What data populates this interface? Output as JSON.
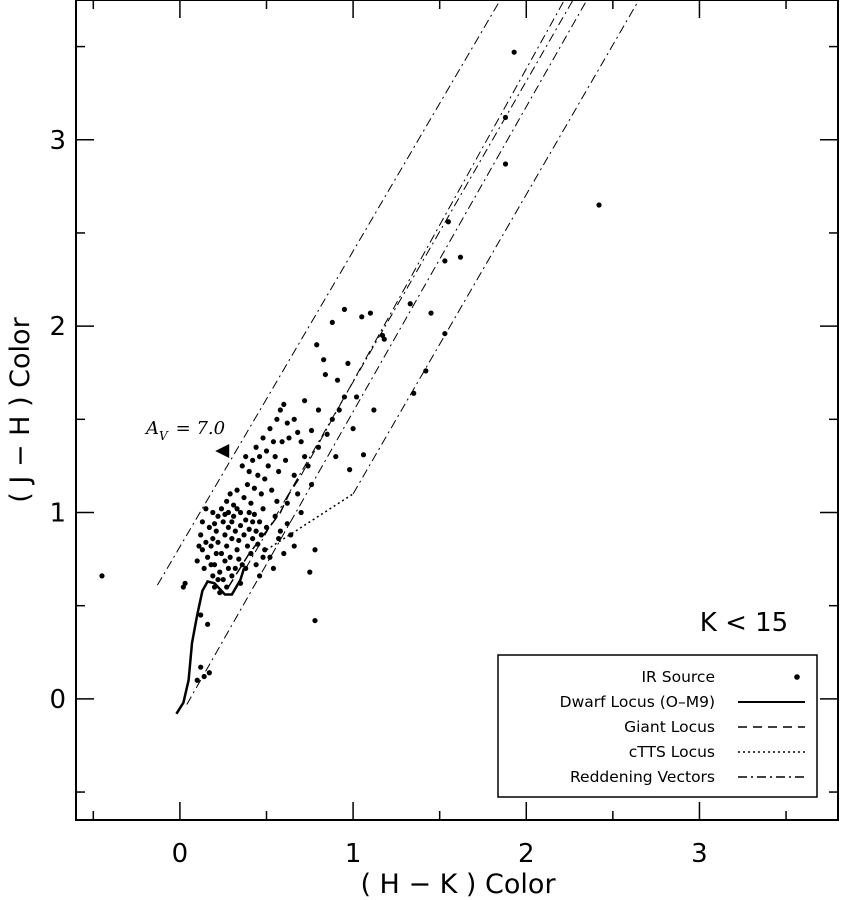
{
  "chart_data": {
    "type": "scatter",
    "xlabel": "( H − K ) Color",
    "ylabel": "( J − H ) Color",
    "xlim": [
      -0.6,
      3.8
    ],
    "ylim": [
      -0.65,
      3.75
    ],
    "xticks": [
      0,
      1,
      2,
      3
    ],
    "yticks": [
      0,
      1,
      2,
      3
    ],
    "grid": false,
    "legend_position": "bottom-right",
    "annotations": {
      "cut": "K < 15",
      "av_label": "A",
      "av_sub": "V",
      "av_value": "= 7.0"
    },
    "legend": [
      {
        "label": "IR Source",
        "style": "dot"
      },
      {
        "label": "Dwarf Locus (O–M9)",
        "style": "solid"
      },
      {
        "label": "Giant Locus",
        "style": "dashed"
      },
      {
        "label": "cTTS Locus",
        "style": "dotted"
      },
      {
        "label": "Reddening Vectors",
        "style": "dashdot"
      }
    ],
    "av_arrow": {
      "x": 0.25,
      "y": 1.33
    },
    "series": [
      {
        "name": "IR Source",
        "style": "dot",
        "points": [
          [
            -0.45,
            0.66
          ],
          [
            0.78,
            0.42
          ],
          [
            2.42,
            2.65
          ],
          [
            1.93,
            3.47
          ],
          [
            1.88,
            3.12
          ],
          [
            1.88,
            2.87
          ],
          [
            1.62,
            2.37
          ],
          [
            1.53,
            2.35
          ],
          [
            1.55,
            2.56
          ],
          [
            1.53,
            1.96
          ],
          [
            1.42,
            1.76
          ],
          [
            1.35,
            1.64
          ],
          [
            1.45,
            2.07
          ],
          [
            1.33,
            2.12
          ],
          [
            1.17,
            1.95
          ],
          [
            1.18,
            1.93
          ],
          [
            1.1,
            2.07
          ],
          [
            1.05,
            2.05
          ],
          [
            0.95,
            2.09
          ],
          [
            0.88,
            2.02
          ],
          [
            0.97,
            1.8
          ],
          [
            0.91,
            1.71
          ],
          [
            0.79,
            1.9
          ],
          [
            0.83,
            1.82
          ],
          [
            0.84,
            1.74
          ],
          [
            0.8,
            1.55
          ],
          [
            0.88,
            1.5
          ],
          [
            1.06,
            1.31
          ],
          [
            1.12,
            1.55
          ],
          [
            1.0,
            1.45
          ],
          [
            0.98,
            1.23
          ],
          [
            0.76,
            1.44
          ],
          [
            0.68,
            1.43
          ],
          [
            0.78,
            0.8
          ],
          [
            0.75,
            0.68
          ],
          [
            0.62,
            1.05
          ],
          [
            0.58,
            0.9
          ],
          [
            0.1,
            0.1
          ],
          [
            0.14,
            0.12
          ],
          [
            0.17,
            0.14
          ],
          [
            0.12,
            0.17
          ],
          [
            0.16,
            0.4
          ],
          [
            0.12,
            0.45
          ],
          [
            0.23,
            0.57
          ],
          [
            0.2,
            0.6
          ],
          [
            0.02,
            0.6
          ],
          [
            0.03,
            0.62
          ],
          [
            0.18,
            0.82
          ],
          [
            0.19,
            0.86
          ],
          [
            0.21,
            0.9
          ],
          [
            0.22,
            0.84
          ],
          [
            0.24,
            0.78
          ],
          [
            0.25,
            0.95
          ],
          [
            0.26,
            0.88
          ],
          [
            0.27,
            0.82
          ],
          [
            0.28,
            0.92
          ],
          [
            0.29,
            0.76
          ],
          [
            0.3,
            0.86
          ],
          [
            0.31,
            0.98
          ],
          [
            0.32,
            0.9
          ],
          [
            0.33,
            0.8
          ],
          [
            0.34,
            0.85
          ],
          [
            0.35,
            0.93
          ],
          [
            0.36,
            0.72
          ],
          [
            0.37,
            0.88
          ],
          [
            0.38,
            0.96
          ],
          [
            0.39,
            0.82
          ],
          [
            0.4,
            0.91
          ],
          [
            0.41,
            0.78
          ],
          [
            0.42,
            0.86
          ],
          [
            0.43,
            0.99
          ],
          [
            0.44,
            0.9
          ],
          [
            0.45,
            0.83
          ],
          [
            0.46,
            0.95
          ],
          [
            0.47,
            0.88
          ],
          [
            0.48,
            1.02
          ],
          [
            0.49,
            0.8
          ],
          [
            0.5,
            0.92
          ],
          [
            0.22,
            0.98
          ],
          [
            0.24,
            1.02
          ],
          [
            0.26,
            0.74
          ],
          [
            0.28,
            0.7
          ],
          [
            0.3,
            0.66
          ],
          [
            0.2,
            0.72
          ],
          [
            0.16,
            0.76
          ],
          [
            0.15,
            0.84
          ],
          [
            0.14,
            0.7
          ],
          [
            0.13,
            0.8
          ],
          [
            0.12,
            0.88
          ],
          [
            0.17,
            0.92
          ],
          [
            0.19,
            1.0
          ],
          [
            0.21,
            0.78
          ],
          [
            0.23,
            0.68
          ],
          [
            0.25,
            0.64
          ],
          [
            0.27,
            1.06
          ],
          [
            0.29,
            1.1
          ],
          [
            0.31,
            1.04
          ],
          [
            0.33,
            1.12
          ],
          [
            0.35,
            1.0
          ],
          [
            0.37,
            1.08
          ],
          [
            0.39,
            1.15
          ],
          [
            0.41,
            1.05
          ],
          [
            0.43,
            1.13
          ],
          [
            0.45,
            1.2
          ],
          [
            0.47,
            1.1
          ],
          [
            0.49,
            1.18
          ],
          [
            0.51,
            1.25
          ],
          [
            0.53,
            1.12
          ],
          [
            0.55,
            1.3
          ],
          [
            0.57,
            1.22
          ],
          [
            0.59,
            1.38
          ],
          [
            0.61,
            1.28
          ],
          [
            0.63,
            1.4
          ],
          [
            0.36,
            1.25
          ],
          [
            0.38,
            1.3
          ],
          [
            0.4,
            1.22
          ],
          [
            0.42,
            1.28
          ],
          [
            0.44,
            1.35
          ],
          [
            0.46,
            1.3
          ],
          [
            0.48,
            1.4
          ],
          [
            0.5,
            1.33
          ],
          [
            0.52,
            1.45
          ],
          [
            0.54,
            1.38
          ],
          [
            0.56,
            1.5
          ],
          [
            0.58,
            1.55
          ],
          [
            0.6,
            1.58
          ],
          [
            0.62,
            1.48
          ],
          [
            0.66,
            1.2
          ],
          [
            0.68,
            1.1
          ],
          [
            0.7,
            1.0
          ],
          [
            0.72,
            1.3
          ],
          [
            0.55,
            0.98
          ],
          [
            0.57,
            0.86
          ],
          [
            0.6,
            0.78
          ],
          [
            0.62,
            0.94
          ],
          [
            0.64,
            0.88
          ],
          [
            0.66,
            0.82
          ],
          [
            0.52,
            0.76
          ],
          [
            0.54,
            0.7
          ],
          [
            0.56,
            1.06
          ],
          [
            0.35,
            0.62
          ],
          [
            0.32,
            0.7
          ],
          [
            0.27,
            0.6
          ],
          [
            0.22,
            0.64
          ],
          [
            0.19,
            0.66
          ],
          [
            0.1,
            0.74
          ],
          [
            0.11,
            0.82
          ],
          [
            0.13,
            0.95
          ],
          [
            0.15,
            1.02
          ],
          [
            0.44,
            0.72
          ],
          [
            0.46,
            0.66
          ],
          [
            0.48,
            0.76
          ],
          [
            0.7,
            1.38
          ],
          [
            0.74,
            1.25
          ],
          [
            0.76,
            1.15
          ],
          [
            0.8,
            1.35
          ],
          [
            0.85,
            1.42
          ],
          [
            0.9,
            1.3
          ],
          [
            0.92,
            1.55
          ],
          [
            0.95,
            1.62
          ],
          [
            1.02,
            1.62
          ],
          [
            0.72,
            1.6
          ],
          [
            0.66,
            1.5
          ],
          [
            0.33,
            1.02
          ],
          [
            0.3,
            0.95
          ],
          [
            0.28,
            1.0
          ],
          [
            0.26,
            0.99
          ],
          [
            0.4,
            1.0
          ],
          [
            0.42,
            0.95
          ],
          [
            0.34,
            0.75
          ],
          [
            0.38,
            0.7
          ],
          [
            0.2,
            0.94
          ],
          [
            0.18,
            0.72
          ]
        ]
      },
      {
        "name": "Dwarf Locus (O–M9)",
        "style": "solid",
        "points": [
          [
            -0.02,
            -0.08
          ],
          [
            0.02,
            -0.02
          ],
          [
            0.05,
            0.1
          ],
          [
            0.07,
            0.3
          ],
          [
            0.1,
            0.45
          ],
          [
            0.13,
            0.58
          ],
          [
            0.16,
            0.63
          ],
          [
            0.2,
            0.62
          ],
          [
            0.26,
            0.56
          ],
          [
            0.3,
            0.56
          ],
          [
            0.35,
            0.64
          ],
          [
            0.37,
            0.7
          ]
        ]
      },
      {
        "name": "Giant Locus",
        "style": "dashed",
        "points": [
          [
            0.28,
            0.6
          ],
          [
            0.4,
            0.78
          ],
          [
            0.5,
            0.9
          ],
          [
            0.58,
            1.0
          ],
          [
            0.63,
            1.1
          ],
          [
            0.7,
            1.2
          ]
        ]
      },
      {
        "name": "cTTS Locus",
        "style": "dotted",
        "points": [
          [
            0.5,
            0.8
          ],
          [
            1.0,
            1.1
          ]
        ]
      },
      {
        "name": "Reddening Vectors",
        "style": "dashdot",
        "segments": [
          [
            [
              -0.13,
              0.61
            ],
            [
              1.85,
              3.75
            ]
          ],
          [
            [
              0.04,
              -0.03
            ],
            [
              2.35,
              3.75
            ]
          ],
          [
            [
              0.38,
              0.7
            ],
            [
              2.27,
              3.75
            ]
          ],
          [
            [
              0.7,
              1.2
            ],
            [
              2.22,
              3.75
            ]
          ],
          [
            [
              1.0,
              1.1
            ],
            [
              2.65,
              3.75
            ]
          ]
        ]
      }
    ]
  }
}
